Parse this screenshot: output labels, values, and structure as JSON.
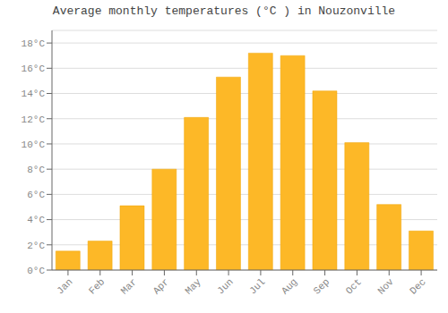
{
  "chart_data": {
    "type": "bar",
    "title": "Average monthly temperatures (°C ) in Nouzonville",
    "categories": [
      "Jan",
      "Feb",
      "Mar",
      "Apr",
      "May",
      "Jun",
      "Jul",
      "Aug",
      "Sep",
      "Oct",
      "Nov",
      "Dec"
    ],
    "values": [
      1.5,
      2.3,
      5.1,
      8.0,
      12.1,
      15.3,
      17.2,
      17.0,
      14.2,
      10.1,
      5.2,
      3.1
    ],
    "color": "#FDB827",
    "ylim": [
      0,
      19
    ],
    "yticks": [
      {
        "value": 0,
        "label": "0°C"
      },
      {
        "value": 2,
        "label": "2°C"
      },
      {
        "value": 4,
        "label": "4°C"
      },
      {
        "value": 6,
        "label": "6°C"
      },
      {
        "value": 8,
        "label": "8°C"
      },
      {
        "value": 10,
        "label": "10°C"
      },
      {
        "value": 12,
        "label": "12°C"
      },
      {
        "value": 14,
        "label": "14°C"
      },
      {
        "value": 16,
        "label": "16°C"
      },
      {
        "value": 18,
        "label": "18°C"
      }
    ],
    "grid": true
  }
}
